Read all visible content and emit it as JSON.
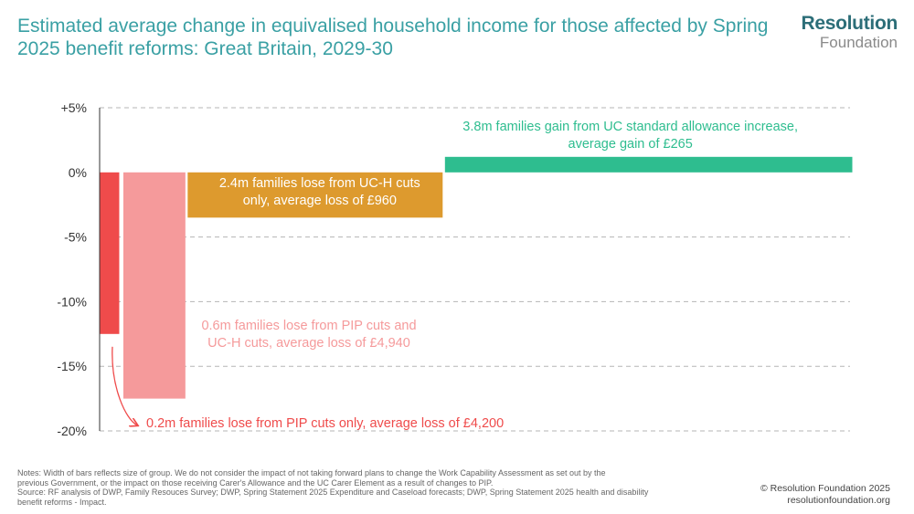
{
  "title": "Estimated average change in equivalised household income for those affected by Spring 2025 benefit reforms: Great Britain, 2029-30",
  "logo": {
    "line1": "Resolution",
    "line2": "Foundation",
    "accent": "#f4b400"
  },
  "colors": {
    "pip_only": "#ef4b4b",
    "pip_uch": "#f59a9b",
    "uch_only": "#dd9a2e",
    "uc_gain": "#2ebd8f",
    "grid": "#b5b5b5"
  },
  "chart_data": {
    "type": "bar",
    "bar_width_meaning": "size of group (millions of families)",
    "ylim": [
      -20,
      5
    ],
    "yticks": [
      5,
      0,
      -5,
      -10,
      -15,
      -20
    ],
    "ytick_labels": [
      "+5%",
      "0%",
      "-5%",
      "-10%",
      "-15%",
      "-20%"
    ],
    "grid": true,
    "series": [
      {
        "families_m": 0.2,
        "change_pct": -12.5,
        "color": "#ef4b4b",
        "label": "0.2m families lose from PIP cuts only, average loss of £4,200"
      },
      {
        "families_m": 0.6,
        "change_pct": -17.5,
        "color": "#f59a9b",
        "label_lines": [
          "0.6m families lose from PIP cuts and",
          "UC-H cuts, average loss of £4,940"
        ]
      },
      {
        "families_m": 2.4,
        "change_pct": -3.5,
        "color": "#dd9a2e",
        "label_lines": [
          "2.4m families lose from UC-H cuts",
          "only, average loss of £960"
        ]
      },
      {
        "families_m": 3.8,
        "change_pct": 1.2,
        "color": "#2ebd8f",
        "label_lines": [
          "3.8m families gain from UC standard allowance increase,",
          "average gain of £265"
        ]
      }
    ]
  },
  "notes": [
    "Notes: Width of bars reflects size of group. We do not consider the impact of not taking forward plans to change the Work Capability Assessment as set out by the",
    "previous Government, or the impact on those receiving Carer's Allowance and the UC Carer Element as a result of changes to PIP.",
    "Source: RF analysis of DWP, Family Resouces Survey; DWP, Spring Statement 2025 Expenditure and Caseload forecasts; DWP, Spring Statement 2025 health and disability",
    "benefit reforms - Impact."
  ],
  "copyright": {
    "line1": "© Resolution Foundation 2025",
    "line2": "resolutionfoundation.org"
  }
}
